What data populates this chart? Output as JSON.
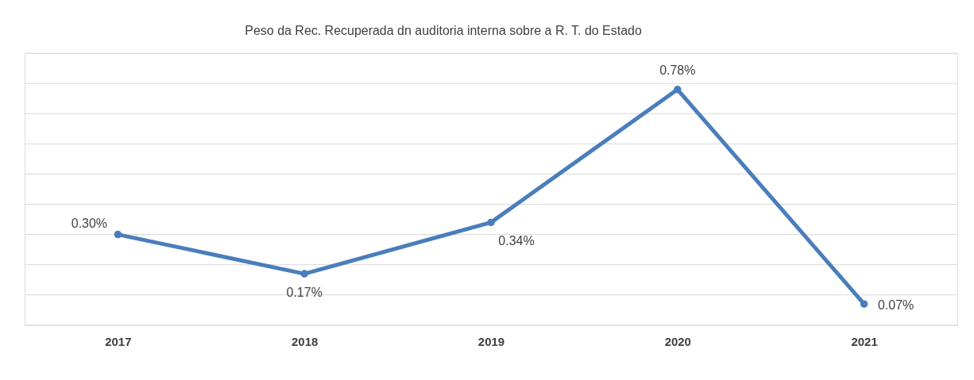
{
  "chart_data": {
    "type": "line",
    "title": "Peso da Rec. Recuperada dn auditoria interna sobre a R. T. do Estado",
    "categories": [
      "2017",
      "2018",
      "2019",
      "2020",
      "2021"
    ],
    "series": [
      {
        "color": "#4a7ebb",
        "values": [
          0.3,
          0.17,
          0.34,
          0.78,
          0.07
        ],
        "value_labels": [
          "0.30%",
          "0.17%",
          "0.34%",
          "0.78%",
          "0.07%"
        ]
      }
    ],
    "ylim": [
      0,
      0.9
    ],
    "yticks": [
      {
        "value": 0,
        "label": null
      },
      {
        "value": 0.1,
        "label": null
      },
      {
        "value": 0.2,
        "label": null
      },
      {
        "value": 0.3,
        "label": null
      },
      {
        "value": 0.4,
        "label": null
      },
      {
        "value": 0.5,
        "label": null
      },
      {
        "value": 0.6,
        "label": null
      },
      {
        "value": 0.7,
        "label": null
      },
      {
        "value": 0.8,
        "label": null
      },
      {
        "value": 0.9,
        "label": null
      }
    ],
    "tick_labels": "x",
    "grid": "y",
    "marker": "circle",
    "line_style": "solid"
  }
}
